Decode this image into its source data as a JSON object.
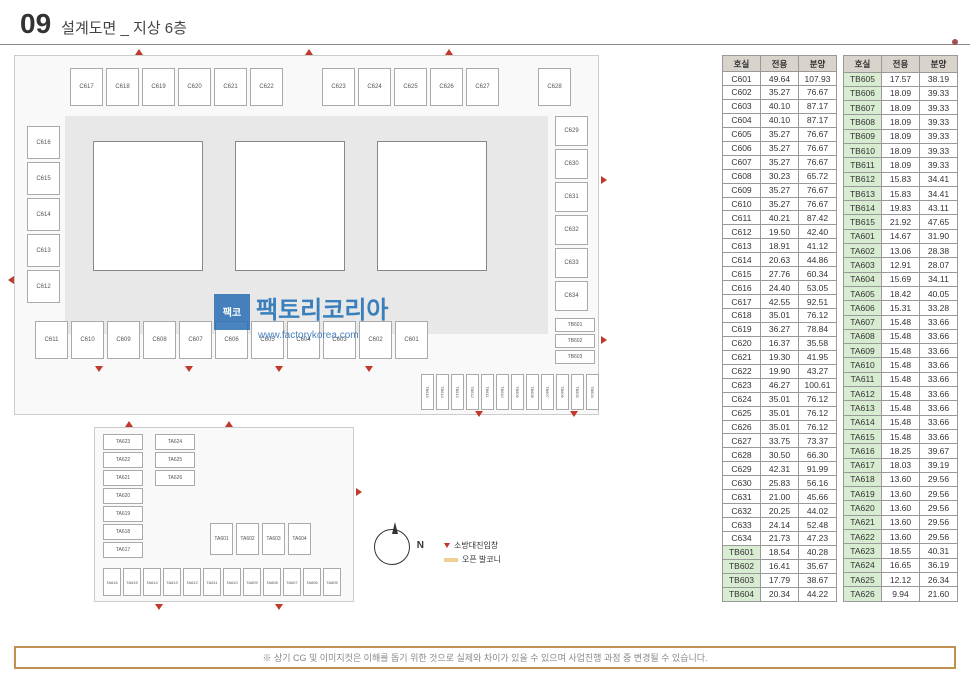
{
  "header": {
    "num": "09",
    "title": "설계도면 _ 지상 6층"
  },
  "watermark": {
    "title": "팩토리코리아",
    "sub": "www.factorykorea.com"
  },
  "tables": {
    "headers": [
      "호실",
      "전용",
      "분양"
    ],
    "col1": [
      {
        "r": "C601",
        "a": "49.64",
        "b": "107.93"
      },
      {
        "r": "C602",
        "a": "35.27",
        "b": "76.67"
      },
      {
        "r": "C603",
        "a": "40.10",
        "b": "87.17"
      },
      {
        "r": "C604",
        "a": "40.10",
        "b": "87.17"
      },
      {
        "r": "C605",
        "a": "35.27",
        "b": "76.67"
      },
      {
        "r": "C606",
        "a": "35.27",
        "b": "76.67"
      },
      {
        "r": "C607",
        "a": "35.27",
        "b": "76.67"
      },
      {
        "r": "C608",
        "a": "30.23",
        "b": "65.72"
      },
      {
        "r": "C609",
        "a": "35.27",
        "b": "76.67"
      },
      {
        "r": "C610",
        "a": "35.27",
        "b": "76.67"
      },
      {
        "r": "C611",
        "a": "40.21",
        "b": "87.42"
      },
      {
        "r": "C612",
        "a": "19.50",
        "b": "42.40"
      },
      {
        "r": "C613",
        "a": "18.91",
        "b": "41.12"
      },
      {
        "r": "C614",
        "a": "20.63",
        "b": "44.86"
      },
      {
        "r": "C615",
        "a": "27.76",
        "b": "60.34"
      },
      {
        "r": "C616",
        "a": "24.40",
        "b": "53.05"
      },
      {
        "r": "C617",
        "a": "42.55",
        "b": "92.51"
      },
      {
        "r": "C618",
        "a": "35.01",
        "b": "76.12"
      },
      {
        "r": "C619",
        "a": "36.27",
        "b": "78.84"
      },
      {
        "r": "C620",
        "a": "16.37",
        "b": "35.58"
      },
      {
        "r": "C621",
        "a": "19.30",
        "b": "41.95"
      },
      {
        "r": "C622",
        "a": "19.90",
        "b": "43.27"
      },
      {
        "r": "C623",
        "a": "46.27",
        "b": "100.61"
      },
      {
        "r": "C624",
        "a": "35.01",
        "b": "76.12"
      },
      {
        "r": "C625",
        "a": "35.01",
        "b": "76.12"
      },
      {
        "r": "C626",
        "a": "35.01",
        "b": "76.12"
      },
      {
        "r": "C627",
        "a": "33.75",
        "b": "73.37"
      },
      {
        "r": "C628",
        "a": "30.50",
        "b": "66.30"
      },
      {
        "r": "C629",
        "a": "42.31",
        "b": "91.99"
      },
      {
        "r": "C630",
        "a": "25.83",
        "b": "56.16"
      },
      {
        "r": "C631",
        "a": "21.00",
        "b": "45.66"
      },
      {
        "r": "C632",
        "a": "20.25",
        "b": "44.02"
      },
      {
        "r": "C633",
        "a": "24.14",
        "b": "52.48"
      },
      {
        "r": "C634",
        "a": "21.73",
        "b": "47.23"
      },
      {
        "r": "TB601",
        "a": "18.54",
        "b": "40.28",
        "cls": "tb"
      },
      {
        "r": "TB602",
        "a": "16.41",
        "b": "35.67",
        "cls": "tb"
      },
      {
        "r": "TB603",
        "a": "17.79",
        "b": "38.67",
        "cls": "tb"
      },
      {
        "r": "TB604",
        "a": "20.34",
        "b": "44.22",
        "cls": "tb"
      }
    ],
    "col2": [
      {
        "r": "TB605",
        "a": "17.57",
        "b": "38.19",
        "cls": "tb"
      },
      {
        "r": "TB606",
        "a": "18.09",
        "b": "39.33",
        "cls": "tb"
      },
      {
        "r": "TB607",
        "a": "18.09",
        "b": "39.33",
        "cls": "tb"
      },
      {
        "r": "TB608",
        "a": "18.09",
        "b": "39.33",
        "cls": "tb"
      },
      {
        "r": "TB609",
        "a": "18.09",
        "b": "39.33",
        "cls": "tb"
      },
      {
        "r": "TB610",
        "a": "18.09",
        "b": "39.33",
        "cls": "tb"
      },
      {
        "r": "TB611",
        "a": "18.09",
        "b": "39.33",
        "cls": "tb"
      },
      {
        "r": "TB612",
        "a": "15.83",
        "b": "34.41",
        "cls": "tb"
      },
      {
        "r": "TB613",
        "a": "15.83",
        "b": "34.41",
        "cls": "tb"
      },
      {
        "r": "TB614",
        "a": "19.83",
        "b": "43.11",
        "cls": "tb"
      },
      {
        "r": "TB615",
        "a": "21.92",
        "b": "47.65",
        "cls": "tb"
      },
      {
        "r": "TA601",
        "a": "14.67",
        "b": "31.90",
        "cls": "ta"
      },
      {
        "r": "TA602",
        "a": "13.06",
        "b": "28.38",
        "cls": "ta"
      },
      {
        "r": "TA603",
        "a": "12.91",
        "b": "28.07",
        "cls": "ta"
      },
      {
        "r": "TA604",
        "a": "15.69",
        "b": "34.11",
        "cls": "ta"
      },
      {
        "r": "TA605",
        "a": "18.42",
        "b": "40.05",
        "cls": "ta"
      },
      {
        "r": "TA606",
        "a": "15.31",
        "b": "33.28",
        "cls": "ta"
      },
      {
        "r": "TA607",
        "a": "15.48",
        "b": "33.66",
        "cls": "ta"
      },
      {
        "r": "TA608",
        "a": "15.48",
        "b": "33.66",
        "cls": "ta"
      },
      {
        "r": "TA609",
        "a": "15.48",
        "b": "33.66",
        "cls": "ta"
      },
      {
        "r": "TA610",
        "a": "15.48",
        "b": "33.66",
        "cls": "ta"
      },
      {
        "r": "TA611",
        "a": "15.48",
        "b": "33.66",
        "cls": "ta"
      },
      {
        "r": "TA612",
        "a": "15.48",
        "b": "33.66",
        "cls": "ta"
      },
      {
        "r": "TA613",
        "a": "15.48",
        "b": "33.66",
        "cls": "ta"
      },
      {
        "r": "TA614",
        "a": "15.48",
        "b": "33.66",
        "cls": "ta"
      },
      {
        "r": "TA615",
        "a": "15.48",
        "b": "33.66",
        "cls": "ta"
      },
      {
        "r": "TA616",
        "a": "18.25",
        "b": "39.67",
        "cls": "ta"
      },
      {
        "r": "TA617",
        "a": "18.03",
        "b": "39.19",
        "cls": "ta"
      },
      {
        "r": "TA618",
        "a": "13.60",
        "b": "29.56",
        "cls": "ta"
      },
      {
        "r": "TA619",
        "a": "13.60",
        "b": "29.56",
        "cls": "ta"
      },
      {
        "r": "TA620",
        "a": "13.60",
        "b": "29.56",
        "cls": "ta"
      },
      {
        "r": "TA621",
        "a": "13.60",
        "b": "29.56",
        "cls": "ta"
      },
      {
        "r": "TA622",
        "a": "13.60",
        "b": "29.56",
        "cls": "ta"
      },
      {
        "r": "TA623",
        "a": "18.55",
        "b": "40.31",
        "cls": "ta"
      },
      {
        "r": "TA624",
        "a": "16.65",
        "b": "36.19",
        "cls": "ta"
      },
      {
        "r": "TA625",
        "a": "12.12",
        "b": "26.34",
        "cls": "ta"
      },
      {
        "r": "TA626",
        "a": "9.94",
        "b": "21.60",
        "cls": "ta"
      }
    ]
  },
  "legend": {
    "fire": "소방대진입창",
    "balcony": "오픈 발코니"
  },
  "compass": {
    "n": "N"
  },
  "footer": "※ 상기 CG 및 이미지컷은 이해를 돕기 위한 것으로 실제와 차이가 있을 수 있으며 사업진행 과정 중 변경될 수 있습니다.",
  "main_plan_rooms_top": [
    "C617",
    "C618",
    "C619",
    "C620",
    "C621",
    "C622",
    "",
    "C623",
    "C624",
    "C625",
    "C626",
    "C627",
    "",
    "C628"
  ],
  "main_plan_rooms_right": [
    "C629",
    "C630",
    "C631",
    "C632",
    "C633",
    "C634"
  ],
  "main_plan_rooms_left": [
    "C616",
    "C615",
    "C614",
    "C613",
    "C612"
  ],
  "main_plan_rooms_bottom": [
    "C611",
    "C610",
    "C609",
    "C608",
    "C607",
    "C606",
    "C605",
    "C604",
    "C603",
    "C602",
    "C601"
  ],
  "main_plan_tb_right": [
    "TB601",
    "TB602",
    "TB603"
  ],
  "main_plan_tb_bottom": [
    "TB615",
    "TB614",
    "TB613",
    "TB612",
    "TB611",
    "TB610",
    "TB609",
    "TB608",
    "TB607",
    "TB606",
    "TB605",
    "TB604"
  ],
  "sub_plan_left": [
    "TA623",
    "TA622",
    "TA621",
    "TA620",
    "TA619",
    "TA618",
    "TA617"
  ],
  "sub_plan_right_top": [
    "TA624",
    "TA625",
    "TA626"
  ],
  "sub_plan_right_mid": [
    "TA601",
    "TA602",
    "TA603",
    "TA604"
  ],
  "sub_plan_bottom": [
    "TA616",
    "TA615",
    "TA614",
    "TA613",
    "TA612",
    "TA611",
    "TA610",
    "TA609",
    "TA608",
    "TA607",
    "TA606",
    "TA605"
  ]
}
